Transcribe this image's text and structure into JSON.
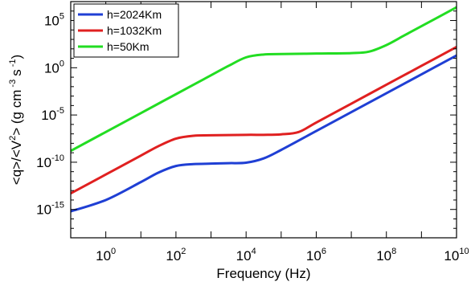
{
  "chart_data": {
    "type": "line",
    "title": "",
    "xlabel": "Frequency (Hz)",
    "ylabel_main": "<q>/<V",
    "ylabel_units": "> (g cm",
    "ylabel_s": "s",
    "x_scale": "log",
    "y_scale": "log",
    "xlim_exponent": [
      -1,
      10
    ],
    "ylim_exponent": [
      -18,
      7
    ],
    "x_tick_base": "10",
    "x_tick_exponents": [
      "0",
      "2",
      "4",
      "6",
      "8",
      "10"
    ],
    "y_tick_base": "10",
    "y_tick_exponents": [
      "5",
      "0",
      "-5",
      "-10",
      "-15"
    ],
    "grid": false,
    "legend_position": "top-left",
    "series": [
      {
        "name": "h=2024Km",
        "color": "#1f3fd4",
        "log10_x": [
          -1,
          0,
          1,
          1.5,
          2,
          2.5,
          3,
          3.5,
          4,
          4.5,
          5,
          6,
          7,
          8,
          9,
          10
        ],
        "log10_y": [
          -15.2,
          -14,
          -12.1,
          -11.1,
          -10.4,
          -10.2,
          -10.15,
          -10.1,
          -10.05,
          -9.6,
          -8.7,
          -6.7,
          -4.7,
          -2.7,
          -0.7,
          1.3
        ]
      },
      {
        "name": "h=1032Km",
        "color": "#e02020",
        "log10_x": [
          -1,
          0,
          1,
          1.5,
          2,
          2.5,
          3,
          4,
          4.5,
          5,
          5.5,
          6,
          7,
          8,
          9,
          10
        ],
        "log10_y": [
          -13.3,
          -11.3,
          -9.3,
          -8.3,
          -7.5,
          -7.2,
          -7.15,
          -7.1,
          -7.1,
          -7.05,
          -6.8,
          -5.8,
          -3.8,
          -1.8,
          0.2,
          2.2
        ]
      },
      {
        "name": "h=50Km",
        "color": "#22dd22",
        "log10_x": [
          -1,
          0,
          1,
          2,
          3,
          3.5,
          4,
          4.5,
          5,
          6,
          7,
          7.5,
          8,
          8.5,
          9,
          10
        ],
        "log10_y": [
          -8.8,
          -6.8,
          -4.8,
          -2.8,
          -0.8,
          0.2,
          1.1,
          1.4,
          1.45,
          1.5,
          1.55,
          1.7,
          2.4,
          3.4,
          4.4,
          6.4
        ]
      }
    ]
  }
}
